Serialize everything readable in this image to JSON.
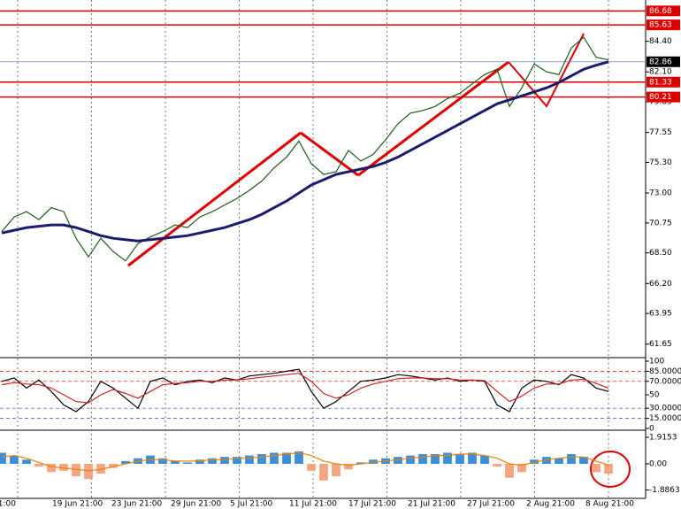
{
  "chart_data": [
    {
      "type": "price",
      "ylim": [
        60.7,
        87.3
      ],
      "yticks": [
        {
          "value": 84.4,
          "label": "84.40"
        },
        {
          "value": 82.1,
          "label": "82.10"
        },
        79.85,
        77.55,
        {
          "value": 75.3,
          "label": "75.30"
        },
        {
          "value": 73,
          "label": "73.00"
        },
        70.75,
        {
          "value": 68.5,
          "label": "68.50"
        },
        {
          "value": 66.2,
          "label": "66.20"
        },
        63.95,
        61.65
      ],
      "levels": [
        {
          "value": 86.68,
          "color": "#e00000"
        },
        {
          "value": 85.63,
          "color": "#e00000"
        },
        {
          "value": 82.86,
          "color": "#000000"
        },
        {
          "value": 81.33,
          "color": "#e00000"
        },
        {
          "value": 80.21,
          "color": "#e00000"
        }
      ],
      "xlabels": [
        "21:00",
        "19 Jun 21:00",
        "23 Jun 21:00",
        "29 Jun 21:00",
        "5 Jul 21:00",
        "11 Jul 21:00",
        "17 Jul 21:00",
        "21 Jul 21:00",
        "27 Jul 21:00",
        "2 Aug 21:00",
        "8 Aug 21:00"
      ],
      "series": [
        {
          "color": "#1a5c1a",
          "values": [
            70.1,
            71.2,
            71.6,
            71.0,
            71.9,
            71.6,
            69.6,
            68.2,
            69.6,
            68.6,
            67.9,
            69.2,
            69.7,
            70.1,
            70.6,
            70.4,
            71.2,
            71.6,
            72.1,
            72.6,
            73.2,
            73.9,
            74.9,
            75.7,
            76.9,
            75.2,
            74.4,
            74.6,
            76.2,
            75.4,
            75.9,
            77.0,
            78.2,
            79.0,
            79.2,
            79.5,
            80.1,
            80.5,
            81.2,
            81.9,
            82.3,
            79.5,
            80.9,
            82.7,
            82.1,
            81.9,
            83.9,
            84.7,
            83.2,
            83.0
          ]
        },
        {
          "color": "#1c1c6e",
          "values": [
            70.0,
            70.2,
            70.4,
            70.5,
            70.6,
            70.6,
            70.4,
            70.1,
            69.8,
            69.6,
            69.5,
            69.4,
            69.5,
            69.6,
            69.7,
            69.8,
            70.0,
            70.2,
            70.4,
            70.7,
            71.0,
            71.4,
            71.9,
            72.4,
            73.0,
            73.6,
            74.0,
            74.4,
            74.6,
            74.8,
            75.0,
            75.3,
            75.7,
            76.2,
            76.7,
            77.2,
            77.7,
            78.2,
            78.7,
            79.2,
            79.7,
            80.0,
            80.3,
            80.6,
            80.9,
            81.3,
            81.8,
            82.3,
            82.6,
            82.86
          ]
        }
      ]
    },
    {
      "type": "oscillator",
      "ylim": [
        0,
        100
      ],
      "yticks": [
        100,
        {
          "value": 85,
          "label": "85.0000"
        },
        {
          "value": 70,
          "label": "70.0000"
        },
        50,
        {
          "value": 30,
          "label": "30.0000"
        },
        {
          "value": 15,
          "label": "15.0000"
        },
        0
      ],
      "series": [
        {
          "color": "#000000",
          "values": [
            70,
            75,
            60,
            72,
            55,
            35,
            25,
            40,
            70,
            60,
            45,
            30,
            70,
            75,
            65,
            70,
            72,
            68,
            75,
            72,
            78,
            80,
            82,
            85,
            88,
            55,
            30,
            40,
            55,
            70,
            72,
            75,
            80,
            78,
            75,
            72,
            75,
            70,
            72,
            70,
            35,
            25,
            60,
            72,
            70,
            65,
            80,
            75,
            60,
            55
          ]
        },
        {
          "color": "#d02020",
          "values": [
            65,
            68,
            66,
            65,
            60,
            50,
            40,
            38,
            50,
            58,
            52,
            45,
            55,
            65,
            67,
            68,
            70,
            70,
            72,
            72,
            74,
            76,
            78,
            80,
            82,
            70,
            52,
            45,
            50,
            60,
            66,
            70,
            74,
            75,
            75,
            74,
            74,
            72,
            72,
            71,
            55,
            40,
            48,
            60,
            66,
            66,
            72,
            73,
            67,
            60
          ]
        }
      ]
    },
    {
      "type": "macd",
      "ylim": [
        -2.43,
        2.3
      ],
      "yticks": [
        1.9153,
        {
          "value": 0,
          "label": "0.00"
        },
        -1.8863
      ],
      "bar_colors": [
        "#3a8fd8",
        "#f4a582"
      ],
      "values": [
        0.8,
        0.6,
        0.3,
        -0.2,
        -0.6,
        -0.5,
        -0.9,
        -1.1,
        -0.7,
        -0.3,
        0.2,
        0.4,
        0.6,
        0.4,
        0.2,
        0.1,
        0.3,
        0.4,
        0.5,
        0.5,
        0.6,
        0.7,
        0.8,
        0.8,
        0.9,
        -0.5,
        -1.2,
        -0.9,
        -0.4,
        0.1,
        0.3,
        0.4,
        0.5,
        0.6,
        0.7,
        0.7,
        0.8,
        0.7,
        0.8,
        0.6,
        -0.2,
        -1.0,
        -0.6,
        0.3,
        0.5,
        0.4,
        0.7,
        0.5,
        -0.6,
        -0.7
      ],
      "series": [
        {
          "color": "#f08000",
          "values": [
            0.5,
            0.6,
            0.4,
            0.1,
            -0.2,
            -0.3,
            -0.4,
            -0.5,
            -0.4,
            -0.2,
            0.0,
            0.2,
            0.3,
            0.3,
            0.2,
            0.2,
            0.2,
            0.3,
            0.3,
            0.4,
            0.4,
            0.5,
            0.6,
            0.7,
            0.8,
            0.6,
            0.2,
            0.0,
            -0.1,
            0.0,
            0.1,
            0.2,
            0.3,
            0.4,
            0.5,
            0.6,
            0.6,
            0.7,
            0.7,
            0.6,
            0.4,
            0.0,
            -0.1,
            0.1,
            0.3,
            0.4,
            0.5,
            0.5,
            0.2,
            -0.1
          ]
        }
      ]
    }
  ]
}
